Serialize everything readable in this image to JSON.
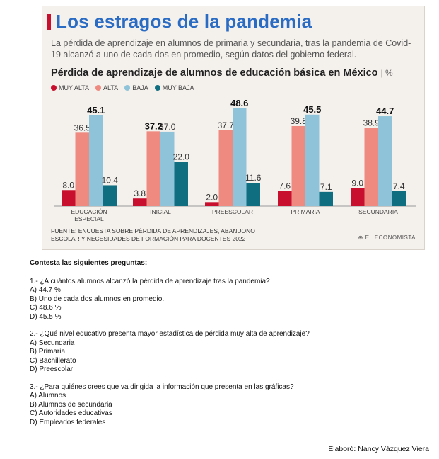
{
  "infographic": {
    "title": "Los estragos de la pandemia",
    "subtitle": "La pérdida de aprendizaje en alumnos de primaria y secundaria, tras la pandemia de Covid-19 alcanzó a uno de cada dos en promedio, según datos del gobierno federal.",
    "source": "FUENTE: ENCUESTA SOBRE PÉRDIDA DE APRENDIZAJES, ABANDONO ESCOLAR Y NECESIDADES DE FORMACIÓN PARA DOCENTES 2022",
    "brand": "EL ECONOMISTA",
    "colors": {
      "title": "#2a6cc4",
      "accent": "#c8102e"
    }
  },
  "chart_data": {
    "type": "bar",
    "title": "Pérdida de aprendizaje de alumnos de educación básica en México",
    "unit": "%",
    "categories": [
      "EDUCACIÓN ESPECIAL",
      "INICIAL",
      "PREESCOLAR",
      "PRIMARIA",
      "SECUNDARIA"
    ],
    "series": [
      {
        "name": "MUY ALTA",
        "color": "#c8102e",
        "values": [
          8.0,
          3.8,
          2.0,
          7.6,
          9.0
        ]
      },
      {
        "name": "ALTA",
        "color": "#ee8a80",
        "values": [
          36.5,
          37.2,
          37.7,
          39.8,
          38.9
        ]
      },
      {
        "name": "BAJA",
        "color": "#8fc3d9",
        "values": [
          45.1,
          37.0,
          48.6,
          45.5,
          44.7
        ]
      },
      {
        "name": "MUY BAJA",
        "color": "#0f6e80",
        "values": [
          10.4,
          22.0,
          11.6,
          7.1,
          7.4
        ]
      }
    ],
    "ylim": [
      0,
      50
    ],
    "grid": false,
    "legend": "top-left"
  },
  "questions": {
    "heading": "Contesta las siguientes preguntas:",
    "items": [
      {
        "text": "1.- ¿A cuántos alumnos alcanzó la pérdida de aprendizaje tras la pandemia?",
        "options": [
          "A) 44.7 %",
          "B) Uno de cada dos alumnos en promedio.",
          "C) 48.6 %",
          "D) 45.5 %"
        ]
      },
      {
        "text": "2.- ¿Qué nivel educativo presenta mayor estadística de pérdida muy alta de aprendizaje?",
        "options": [
          "A) Secundaria",
          "B) Primaria",
          "C) Bachillerato",
          "D) Preescolar"
        ]
      },
      {
        "text": "3.- ¿Para quiénes crees que va dirigida la información que presenta en las gráficas?",
        "options": [
          "A) Alumnos",
          "B) Alumnos de secundaria",
          "C) Autoridades educativas",
          "D) Empleados federales"
        ]
      }
    ]
  },
  "author": "Elaboró: Nancy Vázquez Viera"
}
